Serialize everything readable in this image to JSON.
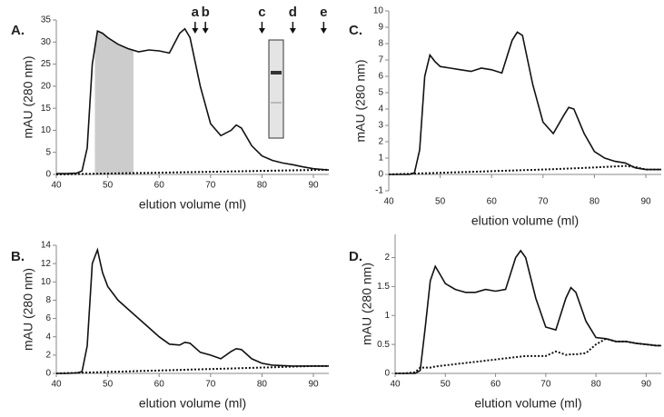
{
  "chart_data": [
    {
      "type": "line",
      "panel_label": "A.",
      "ylabel": "mAU (280 nm)",
      "xlabel": "elution volume (ml)",
      "x": [
        40,
        42,
        44,
        45,
        46,
        47,
        48,
        49,
        50,
        52,
        54,
        56,
        58,
        60,
        62,
        64,
        65,
        66,
        68,
        70,
        72,
        74,
        75,
        76,
        78,
        80,
        82,
        84,
        86,
        88,
        90,
        92,
        93
      ],
      "xlim": [
        40,
        93
      ],
      "xticks": [
        40,
        50,
        60,
        70,
        80,
        90
      ],
      "ylim": [
        0,
        35
      ],
      "yticks": [
        0,
        5,
        10,
        15,
        20,
        25,
        30,
        35
      ],
      "series": [
        {
          "color": "#111111",
          "style": "solid",
          "values": [
            0.2,
            0.2,
            0.3,
            0.8,
            6,
            25,
            32.5,
            32,
            31,
            29.5,
            28.5,
            27.8,
            28.2,
            28,
            27.5,
            32,
            33,
            31,
            20,
            11.5,
            8.8,
            10,
            11.2,
            10.5,
            6.5,
            4.2,
            3.2,
            2.6,
            2.2,
            1.7,
            1.3,
            1.1,
            1
          ]
        },
        {
          "color": "#111111",
          "style": "dotted",
          "values": [
            0,
            0.04,
            0.08,
            0.1,
            0.12,
            0.14,
            0.16,
            0.18,
            0.2,
            0.24,
            0.28,
            0.32,
            0.36,
            0.4,
            0.44,
            0.48,
            0.5,
            0.52,
            0.56,
            0.6,
            0.64,
            0.68,
            0.7,
            0.72,
            0.76,
            0.8,
            0.84,
            0.88,
            0.92,
            0.96,
            1,
            1.04,
            1.06
          ]
        }
      ],
      "shade": [
        47.5,
        55
      ],
      "shade_color": "#cccccc",
      "annotations": [
        {
          "label": "a",
          "x": 67
        },
        {
          "label": "b",
          "x": 69
        },
        {
          "label": "c",
          "x": 80
        },
        {
          "label": "d",
          "x": 86
        },
        {
          "label": "e",
          "x": 92
        }
      ]
    },
    {
      "type": "line",
      "panel_label": "C.",
      "ylabel": "mAU (280 nm)",
      "xlabel": "elution volume (ml)",
      "x": [
        40,
        42,
        44,
        45,
        46,
        47,
        48,
        49,
        50,
        52,
        54,
        56,
        58,
        60,
        62,
        64,
        65,
        66,
        68,
        70,
        72,
        74,
        75,
        76,
        78,
        80,
        82,
        84,
        86,
        88,
        90,
        92,
        93
      ],
      "xlim": [
        40,
        93
      ],
      "xticks": [
        40,
        50,
        60,
        70,
        80,
        90
      ],
      "ylim": [
        -1,
        10
      ],
      "yticks": [
        -1,
        0,
        1,
        2,
        3,
        4,
        5,
        6,
        7,
        8,
        9,
        10
      ],
      "series": [
        {
          "color": "#111111",
          "style": "solid",
          "values": [
            0,
            0,
            0,
            0.1,
            1.5,
            6,
            7.3,
            6.9,
            6.6,
            6.5,
            6.4,
            6.3,
            6.5,
            6.4,
            6.2,
            8.2,
            8.7,
            8.5,
            5.5,
            3.2,
            2.5,
            3.6,
            4.1,
            4,
            2.5,
            1.4,
            1,
            0.8,
            0.7,
            0.4,
            0.3,
            0.3,
            0.3
          ]
        },
        {
          "color": "#111111",
          "style": "dotted",
          "values": [
            0,
            0.02,
            0.04,
            0.05,
            0.06,
            0.07,
            0.08,
            0.09,
            0.1,
            0.12,
            0.14,
            0.16,
            0.18,
            0.2,
            0.22,
            0.24,
            0.25,
            0.26,
            0.28,
            0.3,
            0.32,
            0.35,
            0.36,
            0.37,
            0.4,
            0.43,
            0.46,
            0.49,
            0.52,
            0.45,
            0.3,
            0.3,
            0.3
          ]
        }
      ]
    },
    {
      "type": "line",
      "panel_label": "B.",
      "ylabel": "mAU (280 nm)",
      "xlabel": "elution volume (ml)",
      "x": [
        40,
        42,
        44,
        45,
        46,
        47,
        48,
        49,
        50,
        52,
        54,
        56,
        58,
        60,
        62,
        64,
        65,
        66,
        68,
        70,
        72,
        74,
        75,
        76,
        78,
        80,
        82,
        84,
        86,
        88,
        90,
        92,
        93
      ],
      "xlim": [
        40,
        93
      ],
      "xticks": [
        40,
        50,
        60,
        70,
        80,
        90
      ],
      "ylim": [
        0,
        14
      ],
      "yticks": [
        0,
        2,
        4,
        6,
        8,
        10,
        12,
        14
      ],
      "series": [
        {
          "color": "#111111",
          "style": "solid",
          "values": [
            0,
            0,
            0.05,
            0.2,
            3,
            12,
            13.5,
            11,
            9.5,
            8,
            7,
            6,
            5,
            4,
            3.2,
            3.1,
            3.4,
            3.3,
            2.3,
            2,
            1.6,
            2.4,
            2.7,
            2.6,
            1.6,
            1.1,
            0.9,
            0.85,
            0.8,
            0.8,
            0.8,
            0.8,
            0.8
          ]
        },
        {
          "color": "#111111",
          "style": "dotted",
          "values": [
            0,
            0.03,
            0.06,
            0.08,
            0.1,
            0.11,
            0.13,
            0.14,
            0.16,
            0.19,
            0.22,
            0.26,
            0.29,
            0.32,
            0.35,
            0.38,
            0.4,
            0.42,
            0.45,
            0.48,
            0.51,
            0.54,
            0.56,
            0.58,
            0.61,
            0.64,
            0.67,
            0.7,
            0.74,
            0.77,
            0.8,
            0.8,
            0.8
          ]
        }
      ]
    },
    {
      "type": "line",
      "panel_label": "D.",
      "ylabel": "mAU (280 nm)",
      "xlabel": "elution volume (ml)",
      "x": [
        40,
        42,
        44,
        45,
        46,
        47,
        48,
        49,
        50,
        52,
        54,
        56,
        58,
        60,
        62,
        64,
        65,
        66,
        68,
        70,
        72,
        74,
        75,
        76,
        78,
        80,
        82,
        84,
        86,
        88,
        90,
        92,
        93
      ],
      "xlim": [
        40,
        93
      ],
      "xticks": [
        40,
        50,
        60,
        70,
        80,
        90
      ],
      "ylim": [
        0,
        2.4
      ],
      "yticks": [
        0,
        0.5,
        1,
        1.5,
        2
      ],
      "series": [
        {
          "color": "#111111",
          "style": "solid",
          "values": [
            0,
            0,
            0,
            0.05,
            0.8,
            1.6,
            1.85,
            1.7,
            1.55,
            1.45,
            1.4,
            1.4,
            1.45,
            1.42,
            1.45,
            2,
            2.12,
            2,
            1.3,
            0.8,
            0.75,
            1.3,
            1.48,
            1.4,
            0.9,
            0.62,
            0.6,
            0.55,
            0.55,
            0.52,
            0.5,
            0.48,
            0.48
          ]
        },
        {
          "color": "#111111",
          "style": "dotted",
          "values": [
            0,
            0,
            0.02,
            0.1,
            0.1,
            0.1,
            0.12,
            0.13,
            0.14,
            0.16,
            0.18,
            0.2,
            0.22,
            0.24,
            0.26,
            0.28,
            0.29,
            0.3,
            0.3,
            0.3,
            0.38,
            0.32,
            0.33,
            0.33,
            0.35,
            0.5,
            0.6,
            0.55,
            0.55,
            0.52,
            0.5,
            0.48,
            0.48
          ]
        }
      ]
    }
  ]
}
